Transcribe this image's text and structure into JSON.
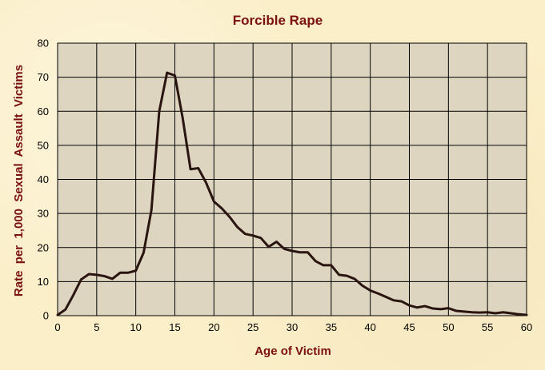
{
  "chart_data": {
    "type": "line",
    "title": "Forcible Rape",
    "xlabel": "Age of Victim",
    "ylabel": "Rate  per  1,000  Sexual  Assault  Victims",
    "xlim": [
      0,
      60
    ],
    "ylim": [
      0,
      80
    ],
    "xticks": [
      0,
      5,
      10,
      15,
      20,
      25,
      30,
      35,
      40,
      45,
      50,
      55,
      60
    ],
    "yticks": [
      0,
      10,
      20,
      30,
      40,
      50,
      60,
      70,
      80
    ],
    "grid": true,
    "legend": "none",
    "colors": {
      "line": "#2a1410",
      "plot_bg": "#ddd5c0",
      "grid": "#000000",
      "title": "#7a1010",
      "background": "#fbefc9"
    },
    "series": [
      {
        "x": [
          0,
          1,
          2,
          3,
          4,
          5,
          6,
          7,
          8,
          9,
          10,
          11,
          12,
          13,
          14,
          15,
          16,
          17,
          18,
          19,
          20,
          21,
          22,
          23,
          24,
          25,
          26,
          27,
          28,
          29,
          30,
          31,
          32,
          33,
          34,
          35,
          36,
          37,
          38,
          39,
          40,
          41,
          42,
          43,
          44,
          45,
          46,
          47,
          48,
          49,
          50,
          51,
          52,
          53,
          54,
          55,
          56,
          57,
          58,
          59,
          60
        ],
        "y": [
          0.2,
          1.8,
          6,
          10.6,
          12.2,
          12,
          11.6,
          10.8,
          12.6,
          12.6,
          13.2,
          18.5,
          31,
          60,
          71.3,
          70.5,
          58,
          43,
          43.3,
          39,
          33.5,
          31.5,
          29,
          26,
          24,
          23.5,
          22.8,
          20.2,
          21.7,
          19.6,
          19,
          18.6,
          18.6,
          16,
          14.8,
          14.8,
          12,
          11.7,
          10.8,
          8.8,
          7.4,
          6.5,
          5.5,
          4.5,
          4.2,
          3,
          2.4,
          2.8,
          2.1,
          1.9,
          2.2,
          1.4,
          1.2,
          1,
          0.9,
          1,
          0.7,
          1,
          0.7,
          0.4,
          0.2
        ]
      }
    ]
  }
}
